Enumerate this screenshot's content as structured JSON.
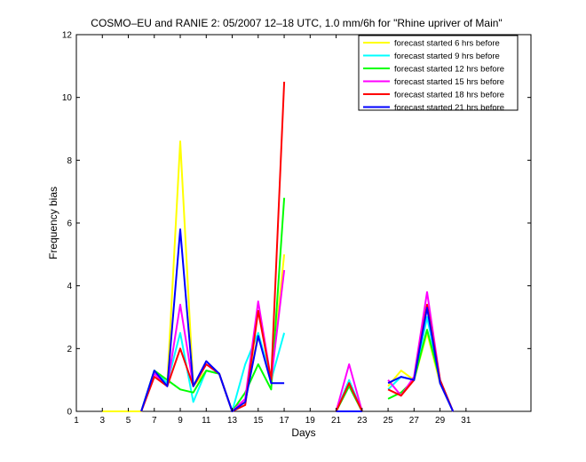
{
  "chart_data": {
    "type": "line",
    "title": "COSMO–EU and RANIE 2: 05/2007 12–18 UTC, 1.0 mm/6h for \"Rhine upriver of Main\"",
    "xlabel": "Days",
    "ylabel": "Frequency bias",
    "xlim": [
      1,
      36
    ],
    "ylim": [
      0,
      12
    ],
    "x_ticks": [
      "1",
      "3",
      "5",
      "7",
      "9",
      "11",
      "13",
      "15",
      "17",
      "19",
      "21",
      "23",
      "25",
      "27",
      "29",
      "31"
    ],
    "y_ticks": [
      "0",
      "2",
      "4",
      "6",
      "8",
      "10",
      "12"
    ],
    "legend_position": "top-right",
    "series": [
      {
        "name": "forecast started 6 hrs before",
        "color": "#ffff00",
        "points": [
          [
            3,
            0
          ],
          [
            6,
            0
          ],
          [
            7,
            1.2
          ],
          [
            8,
            0.9
          ],
          [
            9,
            8.6
          ],
          [
            10,
            0.8
          ],
          [
            11,
            1.3
          ],
          [
            12,
            1.2
          ],
          [
            13,
            0
          ],
          [
            14,
            0.3
          ],
          [
            15,
            2.5
          ],
          [
            16,
            1.0
          ],
          [
            17,
            5.0
          ],
          null,
          [
            21,
            0
          ],
          [
            22,
            0.9
          ],
          [
            23,
            0
          ],
          null,
          [
            25,
            0.8
          ],
          [
            26,
            1.3
          ],
          [
            27,
            1.0
          ],
          [
            28,
            2.5
          ],
          [
            29,
            0.9
          ],
          [
            30,
            0
          ]
        ]
      },
      {
        "name": "forecast started 9 hrs before",
        "color": "#00ffff",
        "points": [
          [
            6,
            0
          ],
          [
            7,
            1.3
          ],
          [
            8,
            0.9
          ],
          [
            9,
            2.5
          ],
          [
            10,
            0.3
          ],
          [
            11,
            1.3
          ],
          [
            12,
            1.2
          ],
          [
            13,
            0
          ],
          [
            14,
            1.5
          ],
          [
            15,
            2.5
          ],
          [
            16,
            1.0
          ],
          [
            17,
            2.5
          ],
          null,
          [
            21,
            0
          ],
          [
            22,
            1.0
          ],
          [
            23,
            0
          ],
          null,
          [
            25,
            0.7
          ],
          [
            26,
            1.1
          ],
          [
            27,
            1.0
          ],
          [
            28,
            3.0
          ],
          [
            29,
            1.0
          ],
          [
            30,
            0
          ]
        ]
      },
      {
        "name": "forecast started 12 hrs before",
        "color": "#00ff00",
        "points": [
          [
            6,
            0
          ],
          [
            7,
            1.3
          ],
          [
            8,
            1.0
          ],
          [
            9,
            0.7
          ],
          [
            10,
            0.6
          ],
          [
            11,
            1.3
          ],
          [
            12,
            1.2
          ],
          [
            13,
            0
          ],
          [
            14,
            0.6
          ],
          [
            15,
            1.5
          ],
          [
            16,
            0.7
          ],
          [
            17,
            6.8
          ],
          null,
          [
            21,
            0
          ],
          [
            22,
            0.8
          ],
          [
            23,
            0
          ],
          null,
          [
            25,
            0.4
          ],
          [
            26,
            0.6
          ],
          [
            27,
            1.0
          ],
          [
            28,
            2.6
          ],
          [
            29,
            1.0
          ],
          [
            30,
            0
          ]
        ]
      },
      {
        "name": "forecast started 15 hrs before",
        "color": "#ff00ff",
        "points": [
          [
            6,
            0
          ],
          [
            7,
            1.2
          ],
          [
            8,
            0.8
          ],
          [
            9,
            3.4
          ],
          [
            10,
            0.8
          ],
          [
            11,
            1.5
          ],
          [
            12,
            1.2
          ],
          [
            13,
            0
          ],
          [
            14,
            0.4
          ],
          [
            15,
            3.5
          ],
          [
            16,
            1.0
          ],
          [
            17,
            4.5
          ],
          null,
          [
            21,
            0
          ],
          [
            22,
            1.5
          ],
          [
            23,
            0
          ],
          null,
          [
            25,
            1.0
          ],
          [
            26,
            0.5
          ],
          [
            27,
            1.1
          ],
          [
            28,
            3.8
          ],
          [
            29,
            1.0
          ],
          [
            30,
            0
          ]
        ]
      },
      {
        "name": "forecast started 18 hrs before",
        "color": "#ff0000",
        "points": [
          [
            6,
            0
          ],
          [
            7,
            1.1
          ],
          [
            8,
            0.8
          ],
          [
            9,
            2.0
          ],
          [
            10,
            0.8
          ],
          [
            11,
            1.5
          ],
          [
            12,
            1.2
          ],
          [
            13,
            0
          ],
          [
            14,
            0.2
          ],
          [
            15,
            3.2
          ],
          [
            16,
            1.0
          ],
          [
            17,
            10.5
          ],
          null,
          [
            21,
            0
          ],
          [
            22,
            0.9
          ],
          [
            23,
            0
          ],
          null,
          [
            25,
            0.7
          ],
          [
            26,
            0.5
          ],
          [
            27,
            1.0
          ],
          [
            28,
            3.4
          ],
          [
            29,
            1.0
          ],
          [
            30,
            0
          ]
        ]
      },
      {
        "name": "forecast started 21 hrs before",
        "color": "#0000ff",
        "points": [
          [
            6,
            0
          ],
          [
            7,
            1.3
          ],
          [
            8,
            0.8
          ],
          [
            9,
            5.8
          ],
          [
            10,
            0.8
          ],
          [
            11,
            1.6
          ],
          [
            12,
            1.2
          ],
          [
            13,
            0
          ],
          [
            14,
            0.3
          ],
          [
            15,
            2.4
          ],
          [
            16,
            0.9
          ],
          [
            17,
            0.9
          ],
          null,
          [
            21,
            0
          ],
          [
            22,
            0
          ],
          [
            23,
            0
          ],
          null,
          [
            25,
            0.9
          ],
          [
            26,
            1.1
          ],
          [
            27,
            1.0
          ],
          [
            28,
            3.3
          ],
          [
            29,
            0.9
          ],
          [
            30,
            0
          ]
        ]
      }
    ]
  }
}
